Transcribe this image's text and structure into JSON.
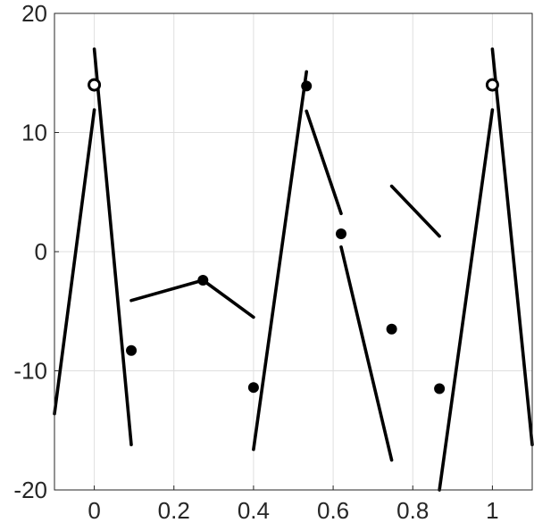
{
  "chart_data": {
    "type": "line",
    "title": "",
    "xlabel": "",
    "ylabel": "",
    "xlim": [
      -0.1,
      1.1
    ],
    "ylim": [
      -20,
      20
    ],
    "grid": true,
    "x_ticks": [
      0,
      0.2,
      0.4,
      0.6,
      0.8,
      1
    ],
    "x_tick_labels": [
      "0",
      "0.2",
      "0.4",
      "0.6",
      "0.8",
      "1"
    ],
    "y_ticks": [
      -20,
      -10,
      0,
      10,
      20
    ],
    "y_tick_labels": [
      "-20",
      "-10",
      "0",
      "10",
      "20"
    ],
    "segments": [
      {
        "x": [
          -0.1,
          0.0
        ],
        "y": [
          -13.6,
          11.9
        ]
      },
      {
        "x": [
          0.0,
          0.093
        ],
        "y": [
          17.0,
          -16.2
        ]
      },
      {
        "x": [
          0.093,
          0.273
        ],
        "y": [
          -4.1,
          -2.4
        ]
      },
      {
        "x": [
          0.273,
          0.4
        ],
        "y": [
          -2.4,
          -5.5
        ]
      },
      {
        "x": [
          0.4,
          0.533
        ],
        "y": [
          -16.6,
          15.1
        ]
      },
      {
        "x": [
          0.533,
          0.62
        ],
        "y": [
          11.8,
          3.2
        ]
      },
      {
        "x": [
          0.62,
          0.747
        ],
        "y": [
          0.4,
          -17.5
        ]
      },
      {
        "x": [
          0.747,
          0.867
        ],
        "y": [
          5.5,
          1.3
        ]
      },
      {
        "x": [
          0.867,
          1.0
        ],
        "y": [
          -20.0,
          11.9
        ]
      },
      {
        "x": [
          1.0,
          1.1
        ],
        "y": [
          17.0,
          -16.2
        ]
      }
    ],
    "points": [
      {
        "x": 0.093,
        "y": -8.3,
        "style": "filled"
      },
      {
        "x": 0.273,
        "y": -2.4,
        "style": "filled"
      },
      {
        "x": 0.4,
        "y": -11.4,
        "style": "filled"
      },
      {
        "x": 0.533,
        "y": 13.9,
        "style": "filled"
      },
      {
        "x": 0.62,
        "y": 1.5,
        "style": "filled"
      },
      {
        "x": 0.747,
        "y": -6.5,
        "style": "filled"
      },
      {
        "x": 0.867,
        "y": -11.5,
        "style": "filled"
      },
      {
        "x": 0.0,
        "y": 14.0,
        "style": "open"
      },
      {
        "x": 1.0,
        "y": 14.0,
        "style": "open"
      }
    ]
  }
}
